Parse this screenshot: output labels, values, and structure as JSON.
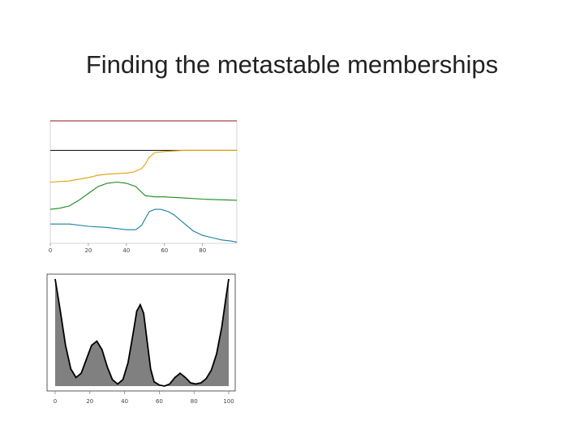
{
  "slide": {
    "title": "Finding the metastable memberships"
  },
  "chart_data": [
    {
      "type": "line",
      "title": "",
      "xlabel": "",
      "ylabel": "",
      "xlim": [
        0,
        98
      ],
      "ylim": [
        0,
        1.08
      ],
      "xticks": [
        "0",
        "20",
        "40",
        "60",
        "80"
      ],
      "grid": false,
      "legend": "none",
      "series": [
        {
          "color": "#8b1a1a",
          "x": [
            0,
            98
          ],
          "y": [
            1.08,
            1.08
          ]
        },
        {
          "color": "#222222",
          "x": [
            0,
            98
          ],
          "y": [
            0.82,
            0.82
          ]
        },
        {
          "color": "#e0a000",
          "x": [
            0,
            10,
            20,
            25,
            30,
            40,
            44,
            48,
            50,
            52,
            55,
            60,
            70,
            80,
            98
          ],
          "y": [
            0.54,
            0.55,
            0.58,
            0.6,
            0.61,
            0.62,
            0.63,
            0.66,
            0.7,
            0.76,
            0.8,
            0.81,
            0.82,
            0.82,
            0.82
          ]
        },
        {
          "color": "#1a8a1a",
          "x": [
            0,
            5,
            10,
            15,
            20,
            25,
            30,
            35,
            40,
            45,
            48,
            50,
            55,
            60,
            70,
            80,
            98
          ],
          "y": [
            0.3,
            0.31,
            0.33,
            0.38,
            0.44,
            0.5,
            0.53,
            0.54,
            0.53,
            0.5,
            0.45,
            0.42,
            0.41,
            0.41,
            0.4,
            0.39,
            0.38
          ]
        },
        {
          "color": "#1a7fa0",
          "x": [
            0,
            10,
            20,
            30,
            35,
            40,
            45,
            48,
            50,
            52,
            55,
            58,
            62,
            65,
            70,
            75,
            80,
            85,
            90,
            95,
            98
          ],
          "y": [
            0.17,
            0.17,
            0.15,
            0.14,
            0.13,
            0.12,
            0.12,
            0.16,
            0.22,
            0.28,
            0.3,
            0.3,
            0.28,
            0.25,
            0.18,
            0.11,
            0.07,
            0.05,
            0.03,
            0.02,
            0.01
          ]
        }
      ]
    },
    {
      "type": "area",
      "title": "",
      "xlabel": "",
      "ylabel": "",
      "xlim": [
        0,
        100
      ],
      "ylim": [
        0,
        1.0
      ],
      "xticks": [
        "0",
        "20",
        "40",
        "60",
        "80",
        "100"
      ],
      "grid": false,
      "legend": "none",
      "fill_color": "#808080",
      "line_color": "#000000",
      "series": [
        {
          "x": [
            0,
            3,
            6,
            9,
            12,
            15,
            18,
            21,
            24,
            27,
            30,
            33,
            36,
            39,
            42,
            45,
            47,
            49,
            51,
            53,
            55,
            57,
            60,
            63,
            66,
            69,
            72,
            75,
            78,
            81,
            84,
            87,
            90,
            93,
            96,
            98,
            100
          ],
          "y": [
            1.0,
            0.7,
            0.38,
            0.16,
            0.08,
            0.12,
            0.25,
            0.38,
            0.42,
            0.34,
            0.18,
            0.06,
            0.02,
            0.06,
            0.22,
            0.5,
            0.7,
            0.76,
            0.68,
            0.42,
            0.16,
            0.04,
            0.01,
            0.0,
            0.02,
            0.08,
            0.12,
            0.08,
            0.03,
            0.02,
            0.03,
            0.07,
            0.15,
            0.3,
            0.55,
            0.78,
            1.0
          ]
        }
      ]
    }
  ]
}
